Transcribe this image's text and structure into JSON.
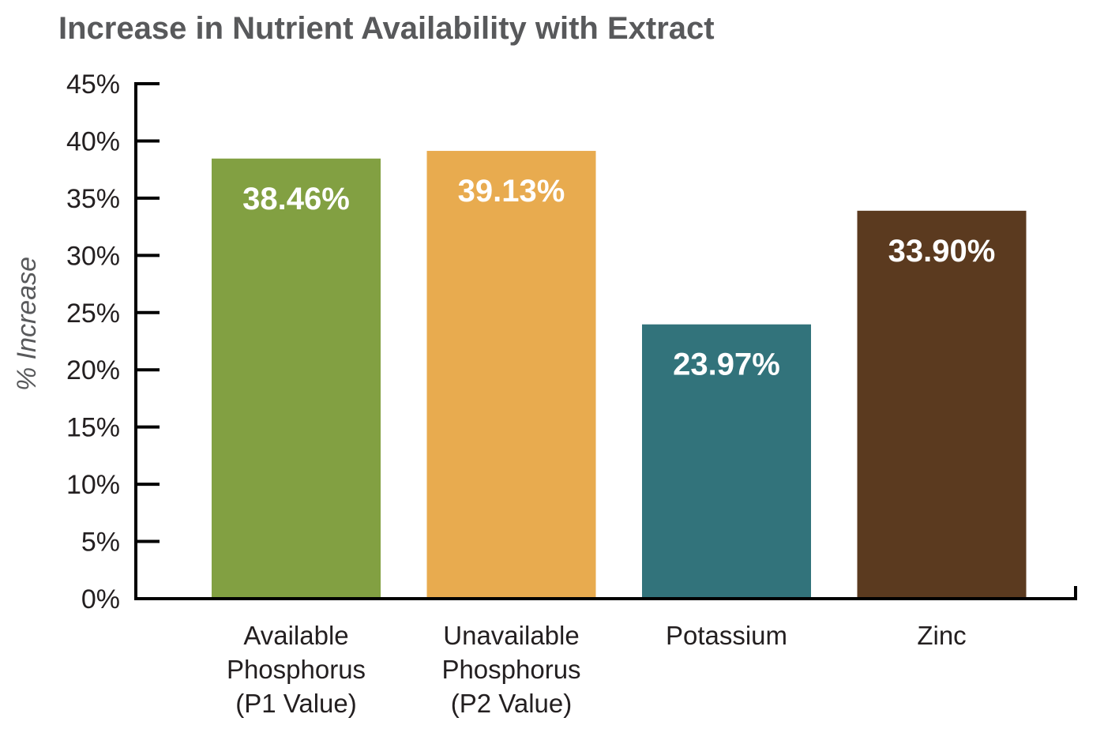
{
  "chart_data": {
    "type": "bar",
    "title": "Increase in Nutrient Availability with Extract",
    "ylabel": "% Increase",
    "xlabel": "",
    "ylim": [
      0,
      45
    ],
    "yticks": [
      0,
      5,
      10,
      15,
      20,
      25,
      30,
      35,
      40,
      45
    ],
    "ytick_labels": [
      "0%",
      "5%",
      "10%",
      "15%",
      "20%",
      "25%",
      "30%",
      "35%",
      "40%",
      "45%"
    ],
    "categories": [
      [
        "Available",
        "Phosphorus",
        "(P1 Value)"
      ],
      [
        "Unavailable",
        "Phosphorus",
        "(P2 Value)"
      ],
      [
        "Potassium"
      ],
      [
        "Zinc"
      ]
    ],
    "values": [
      38.46,
      39.13,
      23.97,
      33.9
    ],
    "data_labels": [
      "38.46%",
      "39.13%",
      "23.97%",
      "33.90%"
    ],
    "colors": [
      "#82a042",
      "#e8ab4f",
      "#32737b",
      "#5b3a1f"
    ],
    "axis_color": "#000000",
    "label_color": "#ffffff",
    "title_color": "#58595b",
    "grid": false,
    "legend": "none"
  }
}
